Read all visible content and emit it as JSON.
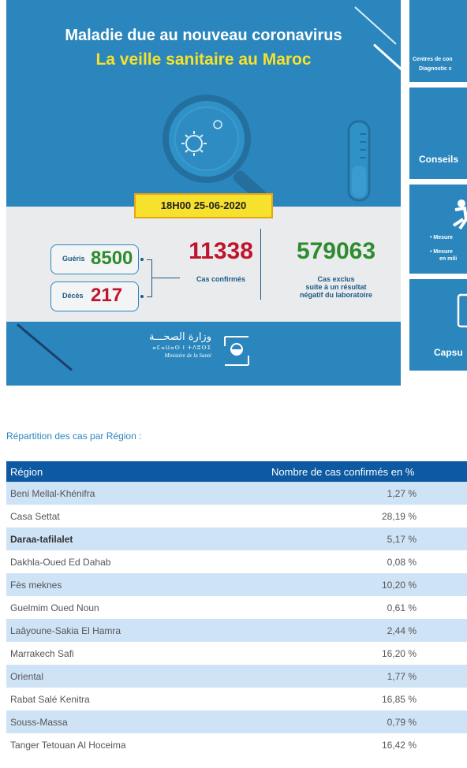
{
  "banner": {
    "title_line1": "Maladie due au nouveau coronavirus",
    "title_line2": "La veille sanitaire au Maroc",
    "datetime": "18H00  25-06-2020",
    "recovered_label": "Guéris",
    "recovered_value": "8500",
    "deaths_label": "Décès",
    "deaths_value": "217",
    "confirmed_value": "11338",
    "confirmed_label": "Cas confirmés",
    "excluded_value": "579063",
    "excluded_label_1": "Cas exclus",
    "excluded_label_2": "suite à un résultat",
    "excluded_label_3": "négatif du laboratoire",
    "ministry_ar": "وزارة الصحـــة",
    "ministry_tf": "ⴰⵎⴰⵡⴰⵙ ⵏ ⵜⴷⵓⵙⵉ",
    "ministry_fr": "Ministère de la Santé"
  },
  "cards": [
    {
      "line1": "Centres de con",
      "line2": "Diagnostic c"
    },
    {
      "line1": "Conseils"
    },
    {
      "line1": "• Mesure",
      "line2": "• Mesure",
      "line3": "en mili"
    },
    {
      "line1": "Capsu"
    }
  ],
  "table": {
    "section_title": "Répartition des cas par Région :",
    "col_region": "Région",
    "col_pct": "Nombre de cas confirmés en %",
    "rows": [
      {
        "region": "Beni Mellal-Khénifra",
        "pct": "1,27 %"
      },
      {
        "region": "Casa Settat",
        "pct": "28,19 %"
      },
      {
        "region": "Daraa-tafilalet",
        "pct": "5,17 %"
      },
      {
        "region": "Dakhla-Oued Ed Dahab",
        "pct": "0,08 %"
      },
      {
        "region": "Fès meknes",
        "pct": "10,20 %"
      },
      {
        "region": "Guelmim Oued Noun",
        "pct": "0,61 %"
      },
      {
        "region": "Laâyoune-Sakia El Hamra",
        "pct": "2,44 %"
      },
      {
        "region": "Marrakech Safi",
        "pct": "16,20 %"
      },
      {
        "region": "Oriental",
        "pct": "1,77 %"
      },
      {
        "region": "Rabat Salé Kenitra",
        "pct": "16,85 %"
      },
      {
        "region": "Souss-Massa",
        "pct": "0,79 %"
      },
      {
        "region": "Tanger Tetouan Al Hoceima",
        "pct": "16,42 %"
      }
    ]
  },
  "colors": {
    "banner_blue": "#2a86bd",
    "date_yellow": "#f6e12c",
    "confirmed_red": "#c0142c",
    "excluded_green": "#2e8b2e",
    "table_header": "#0d5aa3",
    "row_stripe": "#cfe3f7"
  }
}
